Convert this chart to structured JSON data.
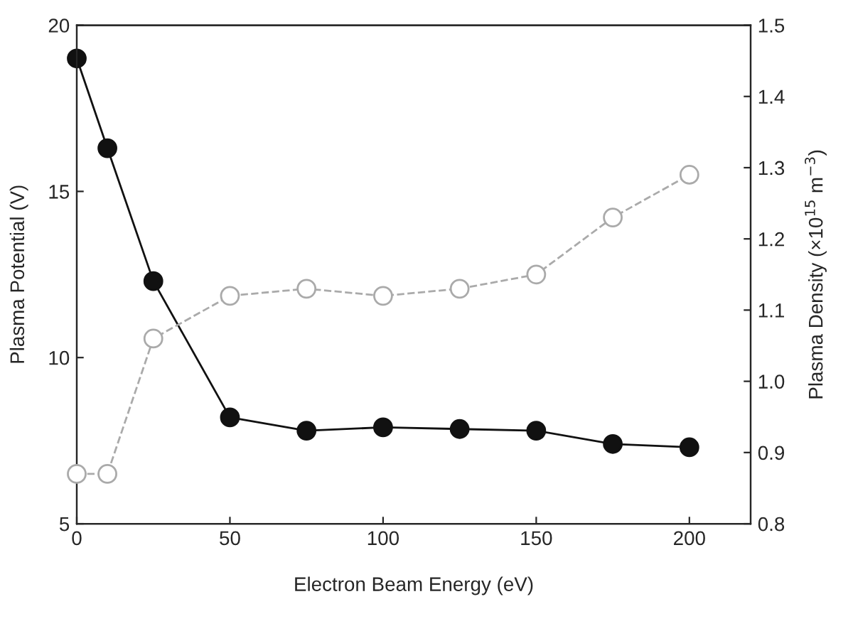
{
  "chart_data": {
    "type": "line",
    "xlabel": "Electron Beam Energy (eV)",
    "ylabel": "Plasma Potential (V)",
    "y2label": "Plasma Density (×10$^{15}$ m$^{−3}$)",
    "x": [
      0,
      10,
      25,
      50,
      75,
      100,
      125,
      150,
      175,
      200
    ],
    "series": [
      {
        "color": "#111111",
        "marker": "circle",
        "line_style": "solid",
        "values": [
          19.0,
          16.3,
          12.3,
          8.2,
          7.8,
          7.9,
          7.85,
          7.8,
          7.4,
          7.3
        ]
      },
      {
        "color": "#aaaaaa",
        "marker": "circle",
        "line_style": "dashed",
        "axis": "y2",
        "values": [
          0.87,
          0.87,
          1.06,
          1.12,
          1.13,
          1.12,
          1.13,
          1.15,
          1.23,
          1.29
        ]
      }
    ],
    "xlim": [
      0,
      220
    ],
    "xticks": [
      0,
      50,
      100,
      150,
      200
    ],
    "ylim": [
      5,
      20
    ],
    "yticks": [
      5,
      10,
      15,
      20
    ],
    "y2lim": [
      0.8,
      1.5
    ],
    "y2ticks": [
      0.8,
      0.9,
      {
        "value": 1.0,
        "label": "1.0"
      },
      1.1,
      1.2,
      1.3,
      1.4,
      1.5
    ],
    "grid": false,
    "legend": false
  }
}
